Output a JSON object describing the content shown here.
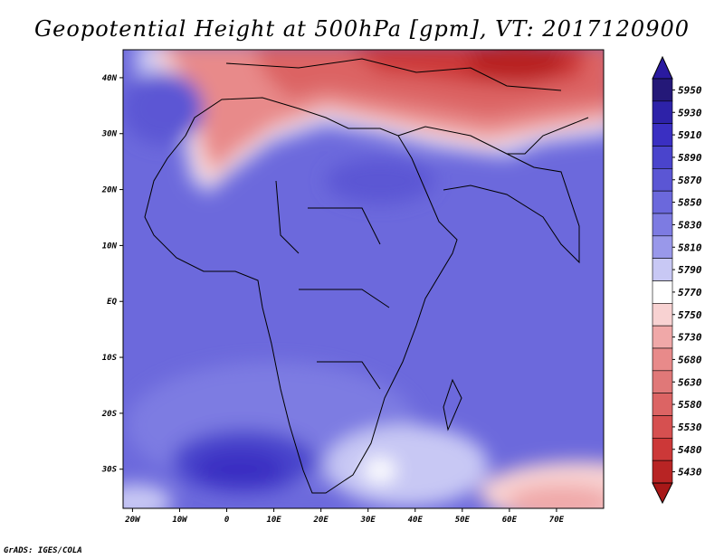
{
  "title": "Geopotential Height at 500hPa [gpm], VT: 2017120900",
  "credit": "GrADS: IGES/COLA",
  "map": {
    "lon_range": [
      -22,
      80
    ],
    "lat_range": [
      -37,
      45
    ],
    "lon_ticks": [
      {
        "v": -20,
        "label": "20W"
      },
      {
        "v": -10,
        "label": "10W"
      },
      {
        "v": 0,
        "label": "0"
      },
      {
        "v": 10,
        "label": "10E"
      },
      {
        "v": 20,
        "label": "20E"
      },
      {
        "v": 30,
        "label": "30E"
      },
      {
        "v": 40,
        "label": "40E"
      },
      {
        "v": 50,
        "label": "50E"
      },
      {
        "v": 60,
        "label": "60E"
      },
      {
        "v": 70,
        "label": "70E"
      }
    ],
    "lat_ticks": [
      {
        "v": 40,
        "label": "40N"
      },
      {
        "v": 30,
        "label": "30N"
      },
      {
        "v": 20,
        "label": "20N"
      },
      {
        "v": 10,
        "label": "10N"
      },
      {
        "v": 0,
        "label": "EQ"
      },
      {
        "v": -10,
        "label": "10S"
      },
      {
        "v": -20,
        "label": "20S"
      },
      {
        "v": -30,
        "label": "30S"
      }
    ]
  },
  "colorbar": {
    "levels": [
      {
        "label": "5950",
        "color": "#241878"
      },
      {
        "label": "5930",
        "color": "#2d22a8"
      },
      {
        "label": "5910",
        "color": "#3a2fc2"
      },
      {
        "label": "5890",
        "color": "#4a44cc"
      },
      {
        "label": "5870",
        "color": "#5b56d4"
      },
      {
        "label": "5850",
        "color": "#6b68dc"
      },
      {
        "label": "5830",
        "color": "#7d7be2"
      },
      {
        "label": "5810",
        "color": "#9998ea"
      },
      {
        "label": "5790",
        "color": "#c8c8f4"
      },
      {
        "label": "5770",
        "color": "#ffffff"
      },
      {
        "label": "5750",
        "color": "#f8d2d2"
      },
      {
        "label": "5730",
        "color": "#f0a8a8"
      },
      {
        "label": "5680",
        "color": "#e88a8a"
      },
      {
        "label": "5630",
        "color": "#e07878"
      },
      {
        "label": "5580",
        "color": "#dc6464"
      },
      {
        "label": "5530",
        "color": "#d65050"
      },
      {
        "label": "5480",
        "color": "#cc3838"
      },
      {
        "label": "5430",
        "color": "#b82424"
      }
    ],
    "top_color": "#2a1aa0",
    "bottom_color": "#a81818"
  }
}
